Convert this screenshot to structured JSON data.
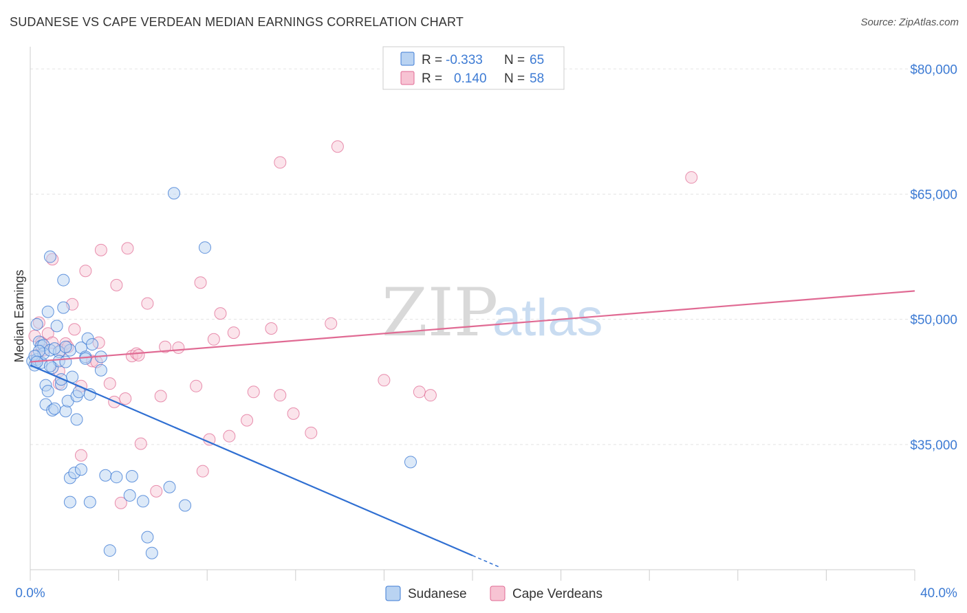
{
  "header": {
    "title": "SUDANESE VS CAPE VERDEAN MEDIAN EARNINGS CORRELATION CHART",
    "source": "Source: ZipAtlas.com"
  },
  "colors": {
    "blue": "#3d7bd4",
    "blue_fill": "#b9d3f2",
    "pink": "#e06a93",
    "pink_fill": "#f7c3d3"
  },
  "chart_data": {
    "type": "scatter",
    "title": "SUDANESE VS CAPE VERDEAN MEDIAN EARNINGS CORRELATION CHART",
    "xlabel": "",
    "ylabel": "Median Earnings",
    "xlim": [
      0,
      40
    ],
    "ylim": [
      20000,
      82000
    ],
    "y_ticks": [
      {
        "value": 35000,
        "label": "$35,000"
      },
      {
        "value": 50000,
        "label": "$50,000"
      },
      {
        "value": 65000,
        "label": "$65,000"
      },
      {
        "value": 80000,
        "label": "$80,000"
      }
    ],
    "x_tick_labels": {
      "left": "0.0%",
      "right": "40.0%"
    },
    "legend": {
      "rows": [
        {
          "r_label": "R =",
          "r_value": "-0.333",
          "n_label": "N =",
          "n_value": "65"
        },
        {
          "r_label": "R =",
          "r_value": "0.140",
          "n_label": "N =",
          "n_value": "58"
        }
      ]
    },
    "series": [
      {
        "name": "Sudanese",
        "trend": {
          "x0": 0,
          "y0": 44500,
          "x1": 20,
          "y1": 21700,
          "dash_to_x": 21.2
        },
        "points": [
          [
            0.1,
            45000
          ],
          [
            0.2,
            44500
          ],
          [
            0.3,
            45200
          ],
          [
            0.3,
            49400
          ],
          [
            0.4,
            47300
          ],
          [
            0.5,
            46800
          ],
          [
            0.5,
            44800
          ],
          [
            0.6,
            46900
          ],
          [
            0.6,
            45900
          ],
          [
            0.7,
            42100
          ],
          [
            0.7,
            39800
          ],
          [
            0.8,
            41400
          ],
          [
            0.8,
            50900
          ],
          [
            0.9,
            57500
          ],
          [
            0.9,
            46300
          ],
          [
            1.0,
            44200
          ],
          [
            1.0,
            39100
          ],
          [
            1.1,
            39300
          ],
          [
            1.2,
            49200
          ],
          [
            1.3,
            46100
          ],
          [
            1.3,
            45000
          ],
          [
            1.4,
            42200
          ],
          [
            1.4,
            42800
          ],
          [
            1.5,
            54700
          ],
          [
            1.5,
            51400
          ],
          [
            1.6,
            39000
          ],
          [
            1.6,
            44900
          ],
          [
            1.7,
            40200
          ],
          [
            1.8,
            46300
          ],
          [
            1.8,
            31000
          ],
          [
            1.8,
            28100
          ],
          [
            1.9,
            43100
          ],
          [
            2.0,
            31600
          ],
          [
            2.1,
            40800
          ],
          [
            2.1,
            38000
          ],
          [
            2.2,
            41300
          ],
          [
            2.3,
            46600
          ],
          [
            2.3,
            32000
          ],
          [
            2.5,
            45500
          ],
          [
            2.6,
            47700
          ],
          [
            2.7,
            41000
          ],
          [
            2.7,
            28100
          ],
          [
            3.2,
            45500
          ],
          [
            3.2,
            43900
          ],
          [
            3.4,
            31300
          ],
          [
            3.6,
            22300
          ],
          [
            3.9,
            31100
          ],
          [
            4.5,
            28900
          ],
          [
            4.6,
            31200
          ],
          [
            5.1,
            28200
          ],
          [
            5.3,
            23900
          ],
          [
            5.5,
            22000
          ],
          [
            6.3,
            29900
          ],
          [
            6.5,
            65100
          ],
          [
            7.0,
            27700
          ],
          [
            7.9,
            58600
          ],
          [
            17.2,
            32900
          ],
          [
            1.1,
            46500
          ],
          [
            0.4,
            46200
          ],
          [
            0.2,
            45600
          ],
          [
            2.8,
            47000
          ],
          [
            0.9,
            44400
          ],
          [
            1.6,
            46700
          ],
          [
            0.3,
            44900
          ],
          [
            2.5,
            45300
          ]
        ]
      },
      {
        "name": "Cape Verdeans",
        "trend": {
          "x0": 0,
          "y0": 44900,
          "x1": 40,
          "y1": 53400
        },
        "points": [
          [
            0.2,
            48000
          ],
          [
            0.3,
            45700
          ],
          [
            0.4,
            49600
          ],
          [
            0.5,
            47200
          ],
          [
            0.6,
            46300
          ],
          [
            0.8,
            48300
          ],
          [
            1.0,
            47200
          ],
          [
            1.0,
            57200
          ],
          [
            1.3,
            42300
          ],
          [
            1.3,
            43800
          ],
          [
            1.4,
            46300
          ],
          [
            1.6,
            47100
          ],
          [
            1.7,
            46700
          ],
          [
            1.9,
            51800
          ],
          [
            2.0,
            48800
          ],
          [
            2.3,
            42000
          ],
          [
            2.3,
            33700
          ],
          [
            2.5,
            55800
          ],
          [
            2.8,
            45000
          ],
          [
            3.0,
            44900
          ],
          [
            3.1,
            47200
          ],
          [
            3.2,
            58300
          ],
          [
            3.6,
            42300
          ],
          [
            3.8,
            40100
          ],
          [
            3.9,
            54100
          ],
          [
            4.1,
            28000
          ],
          [
            4.3,
            40500
          ],
          [
            4.4,
            58500
          ],
          [
            4.6,
            45600
          ],
          [
            4.8,
            45900
          ],
          [
            4.9,
            45700
          ],
          [
            5.0,
            35100
          ],
          [
            5.3,
            51900
          ],
          [
            5.7,
            29400
          ],
          [
            5.9,
            40800
          ],
          [
            6.1,
            46700
          ],
          [
            6.7,
            46600
          ],
          [
            7.5,
            42000
          ],
          [
            7.7,
            54400
          ],
          [
            7.8,
            31800
          ],
          [
            8.1,
            35600
          ],
          [
            8.3,
            47600
          ],
          [
            8.6,
            50700
          ],
          [
            9.0,
            36000
          ],
          [
            9.2,
            48400
          ],
          [
            9.8,
            37900
          ],
          [
            10.1,
            41300
          ],
          [
            10.9,
            48900
          ],
          [
            11.3,
            40900
          ],
          [
            11.3,
            68800
          ],
          [
            11.9,
            38700
          ],
          [
            12.7,
            36400
          ],
          [
            13.6,
            49500
          ],
          [
            13.9,
            70700
          ],
          [
            16.0,
            42700
          ],
          [
            17.6,
            41300
          ],
          [
            18.1,
            40900
          ],
          [
            29.9,
            67000
          ]
        ]
      }
    ]
  }
}
